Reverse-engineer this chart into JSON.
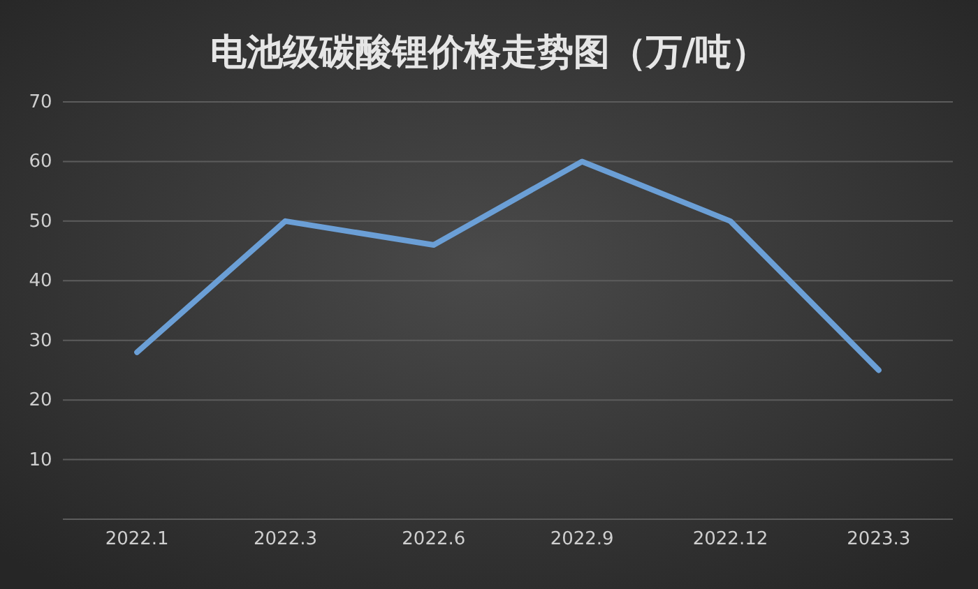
{
  "chart_data": {
    "type": "line",
    "title": "电池级碳酸锂价格走势图（万/吨）",
    "categories": [
      "2022.1",
      "2022.3",
      "2022.6",
      "2022.9",
      "2022.12",
      "2023.3"
    ],
    "series": [
      {
        "color": "#6b9fd6",
        "values": [
          28,
          50,
          46,
          60,
          50,
          25
        ]
      }
    ],
    "ylim": [
      0,
      70
    ],
    "yticks": [
      10,
      20,
      30,
      40,
      50,
      60,
      70
    ],
    "grid": "y",
    "marker": "none",
    "line_style": "solid"
  }
}
